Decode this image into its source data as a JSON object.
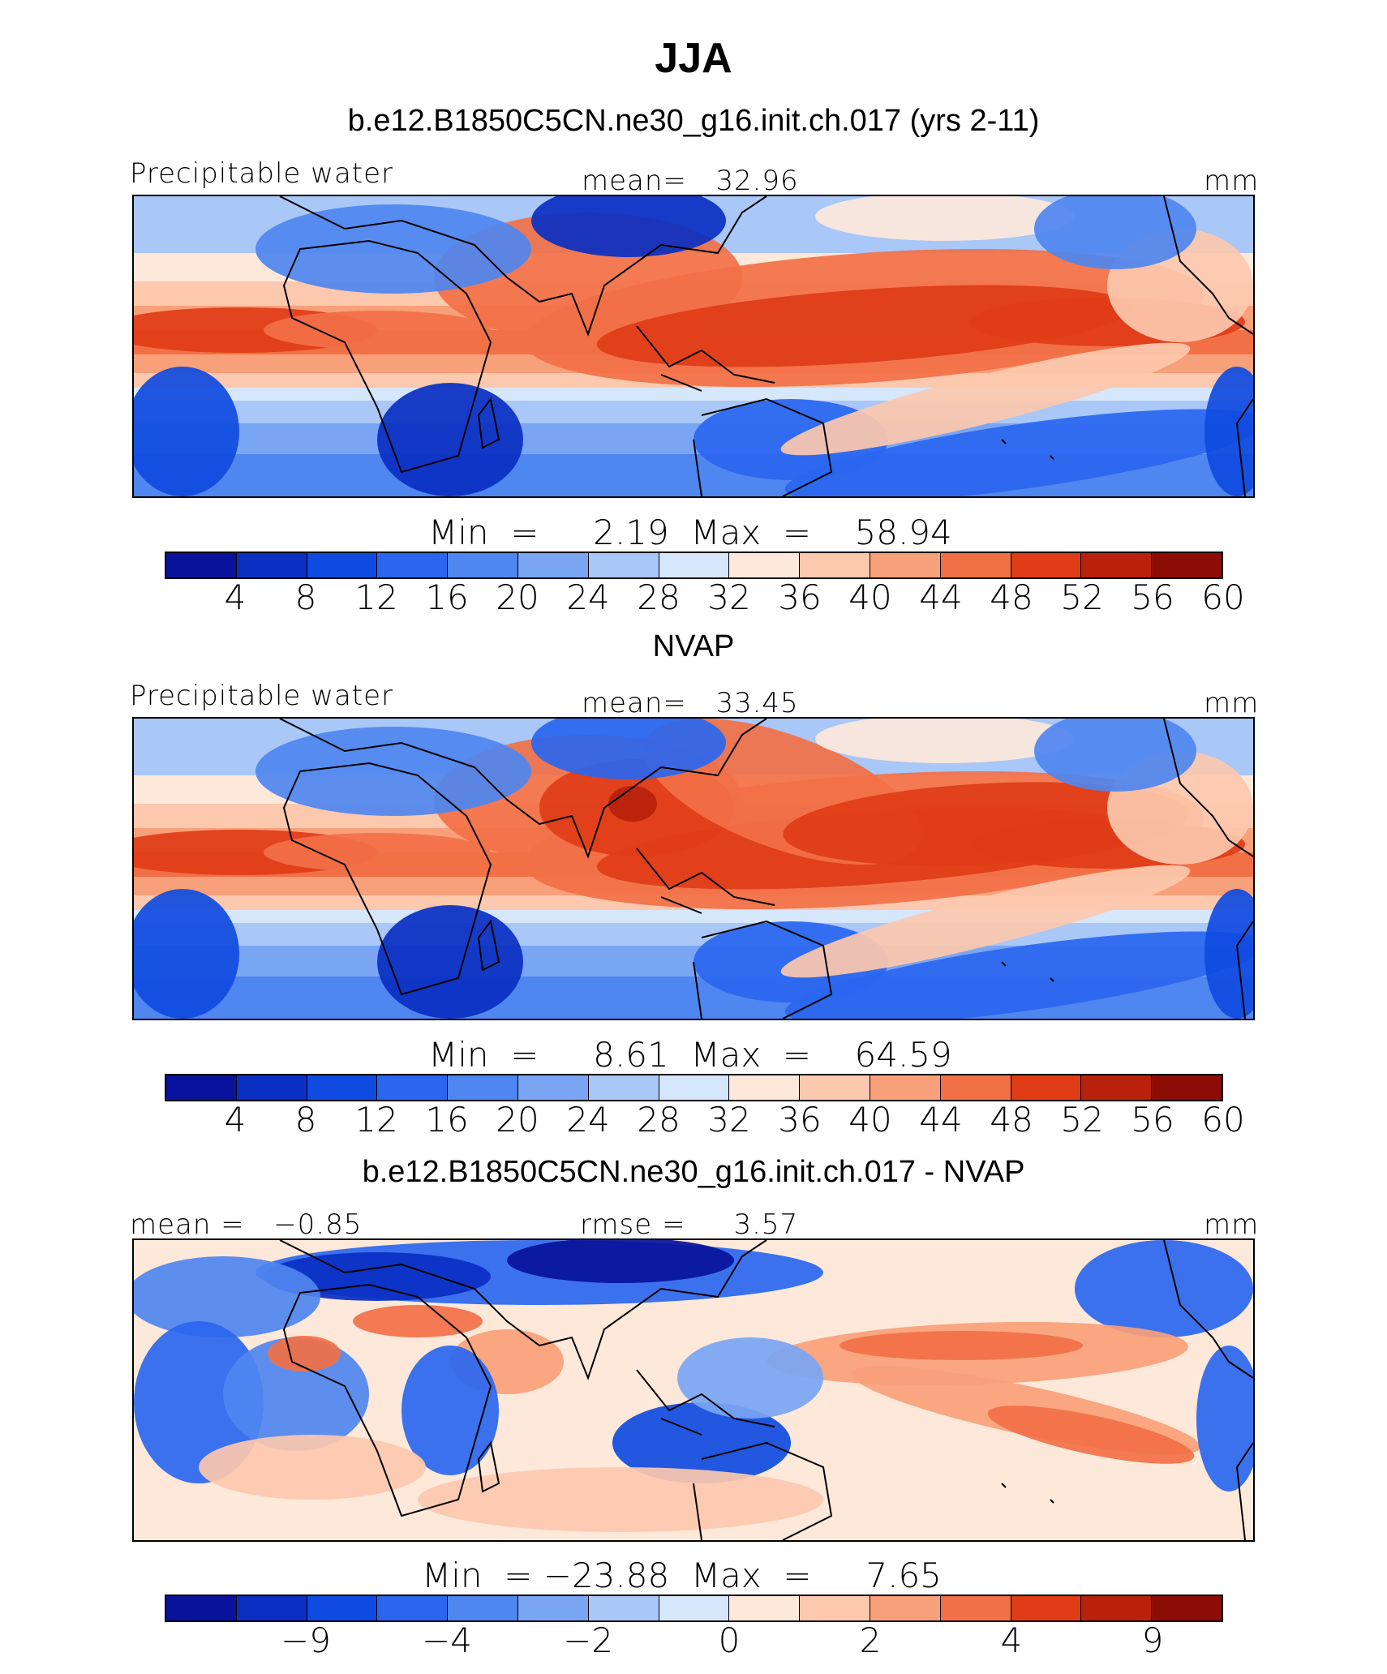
{
  "figure": {
    "title": "JJA"
  },
  "colors": {
    "palette": [
      "#08129a",
      "#0a2fc2",
      "#0f4be0",
      "#2a66ef",
      "#4f86ef",
      "#7aa5f3",
      "#a9c7f7",
      "#d6e6fb",
      "#fde8da",
      "#fcc8ae",
      "#f8a07a",
      "#f27046",
      "#e03c18",
      "#b9210c",
      "#8c0c06"
    ],
    "coast": "#000000"
  },
  "panels": [
    {
      "title": "b.e12.B1850C5CN.ne30_g16.init.ch.017 (yrs 2-11)",
      "left_label": "Precipitable water",
      "center_label": "mean=   32.96",
      "units": "mm",
      "minmax": "Min  =     2.19  Max  =    58.94",
      "colorbar_ticks": [
        "4",
        "8",
        "12",
        "16",
        "20",
        "24",
        "28",
        "32",
        "36",
        "40",
        "44",
        "48",
        "52",
        "56",
        "60"
      ],
      "field": "model"
    },
    {
      "title": "NVAP",
      "left_label": "Precipitable water",
      "center_label": "mean=   33.45",
      "units": "mm",
      "minmax": "Min  =     8.61  Max  =    64.59",
      "colorbar_ticks": [
        "4",
        "8",
        "12",
        "16",
        "20",
        "24",
        "28",
        "32",
        "36",
        "40",
        "44",
        "48",
        "52",
        "56",
        "60"
      ],
      "field": "obs"
    },
    {
      "title": "b.e12.B1850C5CN.ne30_g16.init.ch.017 - NVAP",
      "left_label": "mean =   −0.85",
      "center_label": "rmse =     3.57",
      "units": "mm",
      "minmax": "Min  = −23.88  Max  =     7.65",
      "colorbar_ticks": [
        "−9",
        "−4",
        "−2",
        "0",
        "2",
        "4",
        "9"
      ],
      "field": "diff"
    }
  ]
}
